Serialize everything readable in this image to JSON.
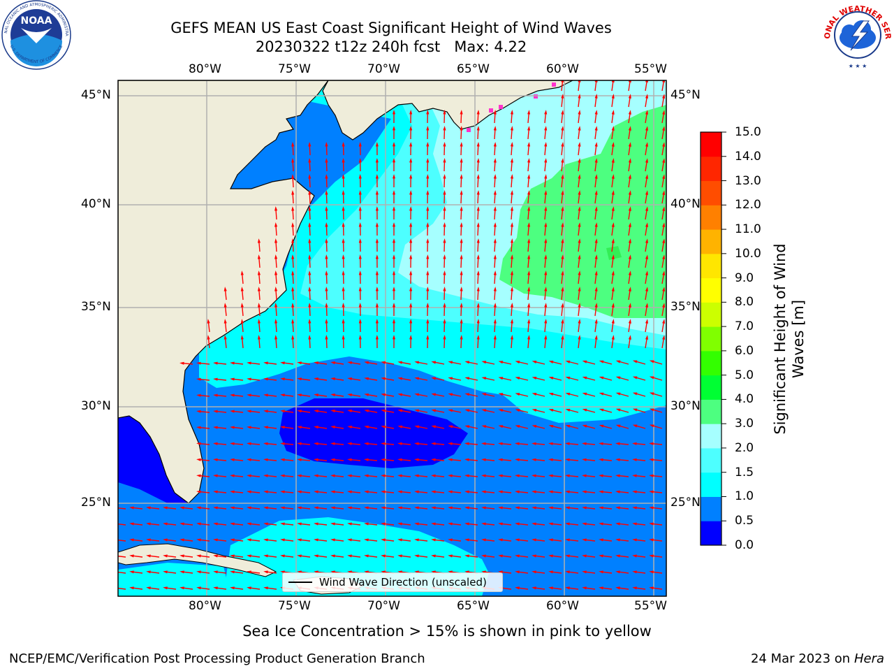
{
  "title": {
    "line1": "GEFS MEAN US East Coast Significant Height of Wind Waves",
    "line2_run": "20230322 t12z 240h fcst",
    "line2_max": "Max: 4.22"
  },
  "subtitle": "Sea Ice Concentration > 15% is shown in pink to yellow",
  "footer": {
    "left": "NCEP/EMC/Verification Post Processing Product Generation Branch",
    "right_date": "24 Mar 2023 on",
    "right_host": "Hera"
  },
  "logos": {
    "left": "noaa-logo",
    "left_text_top": "NATIONAL OCEANIC AND ATMOSPHERIC ADMINISTRATION",
    "left_text_bottom": "U.S. DEPARTMENT OF COMMERCE",
    "left_center": "NOAA",
    "right": "nws-logo",
    "right_text": "NATIONAL WEATHER SERVICE"
  },
  "map": {
    "lon_labels": [
      "80°W",
      "75°W",
      "70°W",
      "65°W",
      "60°W",
      "55°W"
    ],
    "lat_labels": [
      "45°N",
      "40°N",
      "35°N",
      "30°N",
      "25°N"
    ],
    "legend_label": "Wind Wave Direction (unscaled)",
    "colors": {
      "land": "#efedda",
      "arrow": "#ff0000",
      "grid": "#b0b0b0",
      "ice": "#ff33cc"
    }
  },
  "colorbar": {
    "title_line1": "Significant Height of Wind",
    "title_line2": "Waves [m]",
    "tick_labels": [
      "0.0",
      "0.5",
      "1.0",
      "1.5",
      "2.0",
      "3.0",
      "4.0",
      "5.0",
      "6.0",
      "7.0",
      "8.0",
      "9.0",
      "10.0",
      "11.0",
      "12.0",
      "13.0",
      "14.0",
      "15.0"
    ],
    "colors": [
      "#0000ff",
      "#0080ff",
      "#00ffff",
      "#4dffff",
      "#a6ffff",
      "#4dff80",
      "#00ff33",
      "#33ff00",
      "#80ff00",
      "#ccff00",
      "#ffff00",
      "#ffe600",
      "#ffb300",
      "#ff8000",
      "#ff4d00",
      "#ff2600",
      "#ff0000"
    ]
  }
}
